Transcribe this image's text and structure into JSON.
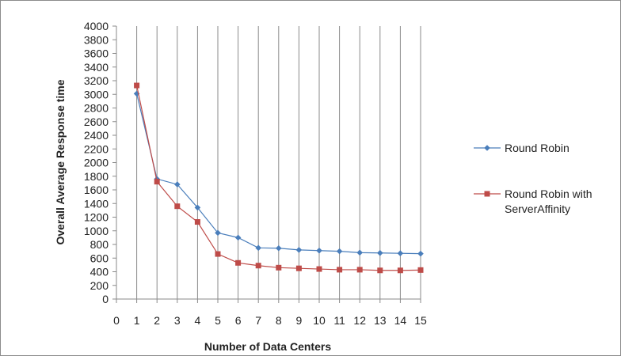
{
  "chart_data": {
    "type": "line",
    "xlabel": "Number of Data Centers",
    "ylabel": "Overall Average Response time",
    "xlim": [
      0,
      15
    ],
    "ylim": [
      0,
      4000
    ],
    "x_ticks": [
      0,
      1,
      2,
      3,
      4,
      5,
      6,
      7,
      8,
      9,
      10,
      11,
      12,
      13,
      14,
      15
    ],
    "y_ticks": [
      0,
      200,
      400,
      600,
      800,
      1000,
      1200,
      1400,
      1600,
      1800,
      2000,
      2200,
      2400,
      2600,
      2800,
      3000,
      3200,
      3400,
      3600,
      3800,
      4000
    ],
    "grid": "vertical",
    "legend_position": "right",
    "x": [
      1,
      2,
      3,
      4,
      5,
      6,
      7,
      8,
      9,
      10,
      11,
      12,
      13,
      14,
      15
    ],
    "series": [
      {
        "name": "Round Robin",
        "color": "#4a7ebb",
        "marker": "diamond",
        "values": [
          3010,
          1760,
          1680,
          1340,
          970,
          900,
          750,
          745,
          720,
          710,
          700,
          680,
          675,
          670,
          665
        ]
      },
      {
        "name": "Round Robin with ServerAffinity",
        "legend_lines": [
          "Round Robin with",
          "ServerAffinity"
        ],
        "color": "#be4b48",
        "marker": "square",
        "values": [
          3130,
          1720,
          1360,
          1130,
          660,
          530,
          490,
          460,
          450,
          440,
          430,
          430,
          420,
          420,
          425
        ]
      }
    ]
  }
}
